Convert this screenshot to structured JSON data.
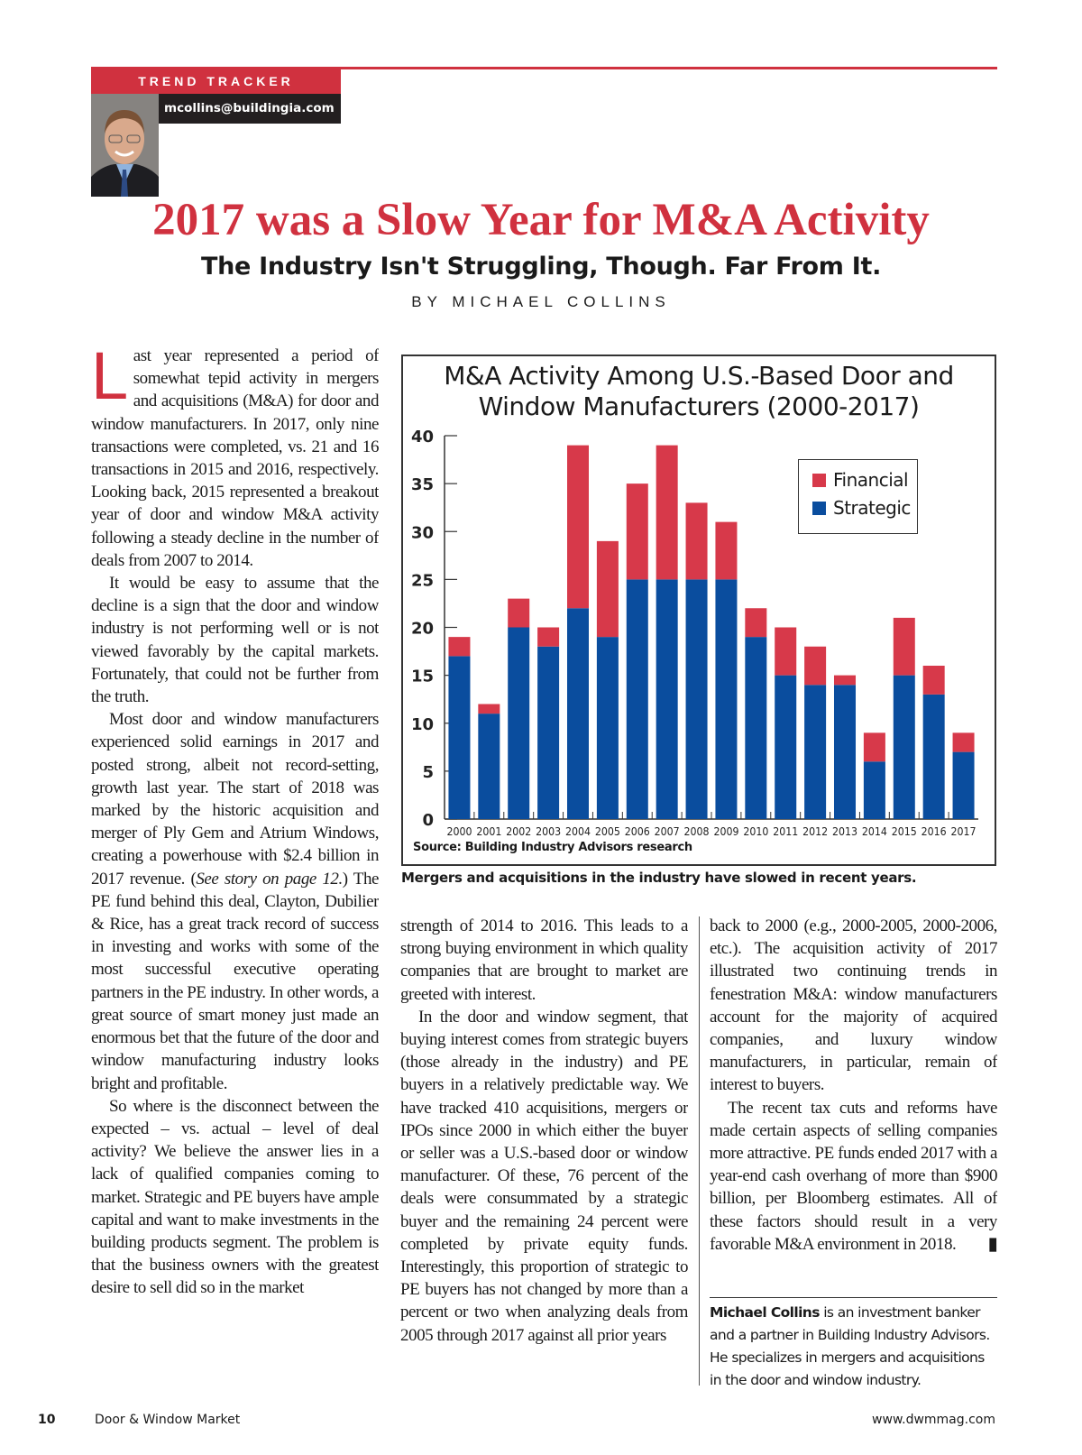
{
  "header": {
    "section": "TREND TRACKER",
    "email": "mcollins@buildingia.com",
    "title": "2017 was a Slow Year for M&A Activity",
    "subtitle": "The Industry Isn't Struggling, Though. Far From It.",
    "byline": "BY MICHAEL COLLINS"
  },
  "article": {
    "left": {
      "dropcap": "L",
      "p1": "ast year represented a period of somewhat tepid activity in mergers and acquisitions (M&A) for door and window manufacturers. In 2017, only nine transactions were completed, vs. 21 and 16 transactions in 2015 and 2016, respectively. Looking back, 2015 represented a breakout year of door and window M&A activity following a steady decline in the number of deals from 2007 to 2014.",
      "p2": "It would be easy to assume that the decline is a sign that the door and window industry is not performing well or is not viewed favorably by the capital markets. Fortunately, that could not be further from the truth.",
      "p3a": "Most door and window manufacturers experienced solid earnings in 2017 and posted strong, albeit not record-setting, growth last year. The start of 2018 was marked by the historic acquisition and merger of Ply Gem and Atrium Windows, creating a powerhouse with $2.4 billion in 2017 revenue. (",
      "p3_italic": "See story on page 12.",
      "p3b": ") The PE fund behind this deal, Clayton, Dubilier & Rice, has a great track record of success in investing and works with some of the most successful executive operating partners in the PE industry. In other words, a great source of smart money just made an enormous bet that the future of the door and window manufacturing industry looks bright and profitable.",
      "p4": "So where is the disconnect between the expected – vs. actual – level of deal activity? We believe the answer lies in a lack of qualified companies coming to market. Strategic and PE buyers have ample capital and want to make investments in the building products segment. The problem is that the business owners with the greatest desire to sell did so in the market"
    },
    "middle": {
      "p1": "strength of 2014 to 2016. This leads to a strong buying environment in which quality companies that are brought to market are greeted with interest.",
      "p2": "In the door and window segment, that buying interest comes from strategic buyers (those already in the industry) and PE buyers in a relatively predictable way. We have tracked 410 acquisitions, mergers or IPOs since 2000 in which either the buyer or seller was a U.S.-based door or window manufacturer. Of these, 76 percent of the deals were consummated by a strategic buyer and the remaining 24 percent were completed by private equity funds. Interestingly, this proportion of strategic to PE buyers has not changed by more than a percent or two when analyzing deals from 2005 through 2017 against all prior years"
    },
    "right": {
      "p1": "back to 2000 (e.g., 2000-2005, 2000-2006, etc.). The acquisition activity of 2017 illustrated two continuing trends in fenestration M&A: window manufacturers account for the majority of acquired companies, and luxury window manufacturers, in particular, remain of interest to buyers.",
      "p2": "The recent tax cuts and reforms have made certain aspects of selling companies more attractive. PE funds ended 2017 with a year-end cash overhang of more than $900 billion, per Bloomberg estimates. All of these factors should result in a very favorable M&A environment in 2018."
    },
    "bio": {
      "name": "Michael Collins",
      "text": " is an investment banker and a partner in Building Industry Advisors. He specializes in mergers and acquisitions in the door and window industry."
    }
  },
  "figure": {
    "caption": "Mergers and acquisitions in the industry have slowed in recent years.",
    "source": "Source: Building Industry Advisors research"
  },
  "footer": {
    "page_number": "10",
    "publication": "Door & Window Market",
    "url": "www.dwmmag.com"
  },
  "colors": {
    "accent": "#d0313f",
    "financial": "#d7394a",
    "strategic": "#0a4d9e"
  },
  "chart_data": {
    "type": "bar",
    "stacked": true,
    "title": "M&A Activity Among U.S.-Based Door and Window Manufacturers (2000-2017)",
    "categories": [
      "2000",
      "2001",
      "2002",
      "2003",
      "2004",
      "2005",
      "2006",
      "2007",
      "2008",
      "2009",
      "2010",
      "2011",
      "2012",
      "2013",
      "2014",
      "2015",
      "2016",
      "2017"
    ],
    "series": [
      {
        "name": "Strategic",
        "values": [
          17,
          11,
          20,
          18,
          22,
          19,
          25,
          25,
          25,
          25,
          19,
          15,
          14,
          14,
          6,
          15,
          13,
          7
        ]
      },
      {
        "name": "Financial",
        "values": [
          2,
          1,
          3,
          2,
          17,
          10,
          10,
          14,
          8,
          6,
          3,
          5,
          4,
          1,
          3,
          6,
          3,
          2
        ]
      }
    ],
    "yticks": [
      "0",
      "5",
      "10",
      "15",
      "20",
      "25",
      "30",
      "35",
      "40"
    ],
    "ylim": [
      0,
      40
    ],
    "xlabel": "",
    "ylabel": "",
    "legend": "top-right",
    "grid": false
  }
}
